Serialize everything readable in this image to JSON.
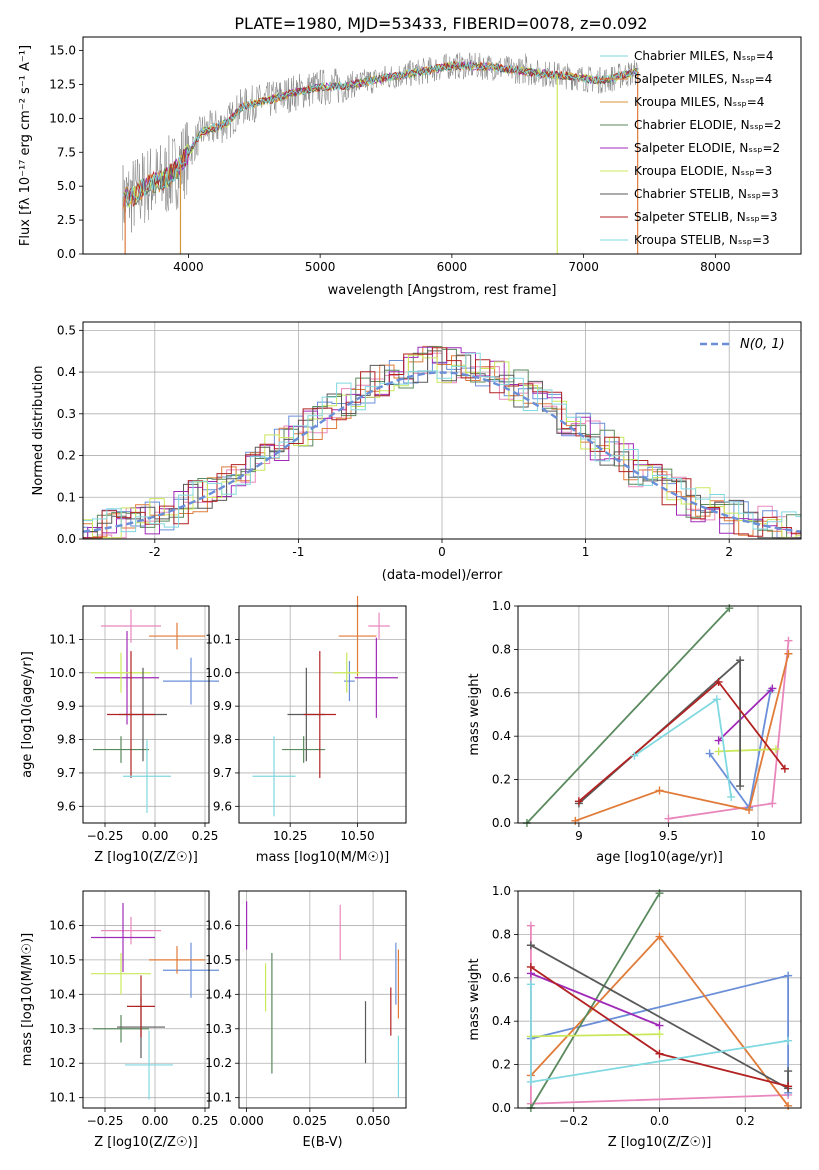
{
  "figure_title": "PLATE=1980, MJD=53433, FIBERID=0078, z=0.092",
  "colors": {
    "mix": [
      "#7fd3d8",
      "#e07b39",
      "#d4943a",
      "#5a8a5e",
      "#a02ab8",
      "#c9e85a",
      "#5a5a5a",
      "#b22222",
      "#80d8e0"
    ],
    "series": [
      "#e987bd",
      "#6a8fd8",
      "#e07b39",
      "#5a8a5e",
      "#a02ab8",
      "#c9e85a",
      "#5a5a5a",
      "#b22222",
      "#80d8e0"
    ],
    "grid": "#b0b0b0",
    "normal": "#6a8fd8",
    "data": "#808080"
  },
  "chart_data": [
    {
      "type": "line",
      "name": "spectrum",
      "title": "PLATE=1980, MJD=53433, FIBERID=0078, z=0.092",
      "xlabel": "wavelength [Angstrom, rest frame]",
      "ylabel": "Flux [fλ 10⁻¹⁷ erg cm⁻² s⁻¹ A⁻¹]",
      "xlim": [
        3200,
        8650
      ],
      "ylim": [
        0,
        16
      ],
      "xticks": [
        4000,
        5000,
        6000,
        7000,
        8000
      ],
      "yticks": [
        0.0,
        2.5,
        5.0,
        7.5,
        10.0,
        12.5,
        15.0
      ],
      "legend_position": "right",
      "legend": [
        "Chabrier MILES, N_SSP=4",
        "Salpeter MILES, N_SSP=4",
        "Kroupa MILES, N_SSP=4",
        "Chabrier ELODIE, N_SSP=2",
        "Salpeter ELODIE, N_SSP=2",
        "Kroupa ELODIE, N_SSP=3",
        "Chabrier STELIB, N_SSP=3",
        "Salpeter STELIB, N_SSP=3",
        "Kroupa STELIB, N_SSP=3"
      ],
      "continuum": {
        "x": [
          3500,
          3600,
          3700,
          3800,
          3900,
          4000,
          4100,
          4200,
          4300,
          4400,
          4500,
          4600,
          4800,
          5000,
          5200,
          5500,
          5800,
          6000,
          6300,
          6600,
          6900,
          7100,
          7200,
          7300,
          7400
        ],
        "y": [
          4.0,
          4.4,
          5.2,
          5.4,
          6.1,
          7.4,
          9.0,
          9.3,
          9.7,
          10.8,
          11.1,
          11.3,
          11.9,
          12.3,
          12.4,
          13.0,
          13.5,
          13.9,
          13.8,
          13.4,
          13.1,
          12.8,
          12.9,
          13.2,
          13.4
        ]
      }
    },
    {
      "type": "line",
      "name": "residual-histogram",
      "xlabel": "(data-model)/error",
      "ylabel": "Normed distribution",
      "xlim": [
        -2.5,
        2.5
      ],
      "ylim": [
        0,
        0.52
      ],
      "xticks": [
        -2,
        -1,
        0,
        1,
        2
      ],
      "yticks": [
        0.0,
        0.1,
        0.2,
        0.3,
        0.4,
        0.5
      ],
      "legend": [
        "N(0, 1)"
      ],
      "legend_position": "top-right",
      "bin_width": 0.1
    },
    {
      "type": "scatter",
      "name": "age-vs-Z",
      "xlabel": "Z [log10(Z/Z☉)]",
      "ylabel": "age [log10(age/yr)]",
      "xlim": [
        -0.36,
        0.27
      ],
      "ylim": [
        9.55,
        10.2
      ],
      "xticks": [
        -0.25,
        0.0,
        0.25
      ],
      "xticklabels": [
        "−0.25",
        "0.00",
        "0.25"
      ],
      "yticks": [
        9.6,
        9.7,
        9.8,
        9.9,
        10.0,
        10.1
      ],
      "points": [
        {
          "x": -0.12,
          "y": 10.14,
          "xerr": 0.15,
          "yerr": 0.05,
          "c": 0
        },
        {
          "x": 0.18,
          "y": 9.975,
          "xerr": 0.14,
          "yerr": 0.07,
          "c": 1
        },
        {
          "x": 0.11,
          "y": 10.11,
          "xerr": 0.14,
          "yerr": 0.04,
          "c": 2
        },
        {
          "x": -0.17,
          "y": 9.77,
          "xerr": 0.14,
          "yerr": 0.04,
          "c": 3
        },
        {
          "x": -0.14,
          "y": 9.985,
          "xerr": 0.16,
          "yerr": 0.14,
          "c": 4
        },
        {
          "x": -0.17,
          "y": 10.0,
          "xerr": 0.15,
          "yerr": 0.06,
          "c": 5
        },
        {
          "x": -0.06,
          "y": 9.875,
          "xerr": 0.12,
          "yerr": 0.14,
          "c": 6
        },
        {
          "x": -0.12,
          "y": 9.875,
          "xerr": 0.12,
          "yerr": 0.19,
          "c": 7
        },
        {
          "x": -0.04,
          "y": 9.69,
          "xerr": 0.12,
          "yerr": 0.11,
          "c": 8
        }
      ]
    },
    {
      "type": "scatter",
      "name": "age-vs-mass",
      "xlabel": "mass [log10(M/M☉)]",
      "xlim": [
        10.06,
        10.68
      ],
      "ylim": [
        9.55,
        10.2
      ],
      "xticks": [
        10.25,
        10.5
      ],
      "xticklabels": [
        "10.25",
        "10.50"
      ],
      "yticks": [
        9.6,
        9.7,
        9.8,
        9.9,
        10.0,
        10.1
      ],
      "points": [
        {
          "x": 10.58,
          "y": 10.14,
          "xerr": 0.04,
          "yerr": 0.04,
          "c": 0
        },
        {
          "x": 10.47,
          "y": 9.975,
          "xerr": 0.02,
          "yerr": 0.06,
          "c": 1
        },
        {
          "x": 10.5,
          "y": 10.11,
          "xerr": 0.07,
          "yerr": 0.12,
          "c": 2
        },
        {
          "x": 10.3,
          "y": 9.77,
          "xerr": 0.08,
          "yerr": 0.04,
          "c": 3
        },
        {
          "x": 10.57,
          "y": 9.985,
          "xerr": 0.08,
          "yerr": 0.12,
          "c": 4
        },
        {
          "x": 10.46,
          "y": 10.0,
          "xerr": 0.05,
          "yerr": 0.06,
          "c": 5
        },
        {
          "x": 10.31,
          "y": 9.875,
          "xerr": 0.07,
          "yerr": 0.14,
          "c": 6
        },
        {
          "x": 10.36,
          "y": 9.875,
          "xerr": 0.06,
          "yerr": 0.19,
          "c": 7
        },
        {
          "x": 10.19,
          "y": 9.69,
          "xerr": 0.08,
          "yerr": 0.12,
          "c": 8
        }
      ]
    },
    {
      "type": "line",
      "name": "mass-weight-vs-age",
      "xlabel": "age [log10(age/yr)]",
      "ylabel": "mass weight",
      "xlim": [
        8.66,
        10.24
      ],
      "ylim": [
        0,
        1
      ],
      "xticks": [
        9.0,
        9.5,
        10.0
      ],
      "yticks": [
        0.0,
        0.2,
        0.4,
        0.6,
        0.8,
        1.0
      ],
      "series": [
        {
          "c": 0,
          "x": [
            9.5,
            10.08,
            10.17
          ],
          "y": [
            0.02,
            0.09,
            0.84
          ]
        },
        {
          "c": 1,
          "x": [
            9.73,
            9.95,
            10.07
          ],
          "y": [
            0.32,
            0.07,
            0.61
          ]
        },
        {
          "c": 2,
          "x": [
            8.98,
            9.45,
            9.95,
            10.17
          ],
          "y": [
            0.01,
            0.15,
            0.06,
            0.78
          ]
        },
        {
          "c": 3,
          "x": [
            8.71,
            9.84
          ],
          "y": [
            0.0,
            0.99
          ]
        },
        {
          "c": 4,
          "x": [
            9.78,
            10.08
          ],
          "y": [
            0.38,
            0.62
          ]
        },
        {
          "c": 5,
          "x": [
            9.78,
            10.1
          ],
          "y": [
            0.33,
            0.34
          ]
        },
        {
          "c": 6,
          "x": [
            9.0,
            9.9,
            9.9
          ],
          "y": [
            0.09,
            0.75,
            0.17
          ]
        },
        {
          "c": 7,
          "x": [
            9.0,
            9.78,
            10.15
          ],
          "y": [
            0.1,
            0.65,
            0.25
          ]
        },
        {
          "c": 8,
          "x": [
            9.31,
            9.77,
            9.85
          ],
          "y": [
            0.31,
            0.57,
            0.12
          ]
        }
      ]
    },
    {
      "type": "scatter",
      "name": "mass-vs-Z",
      "xlabel": "Z [log10(Z/Z☉)]",
      "ylabel": "mass [log10(M/M☉)]",
      "xlim": [
        -0.36,
        0.27
      ],
      "ylim": [
        10.07,
        10.7
      ],
      "xticks": [
        -0.25,
        0.0,
        0.25
      ],
      "xticklabels": [
        "−0.25",
        "0.00",
        "0.25"
      ],
      "yticks": [
        10.1,
        10.2,
        10.3,
        10.4,
        10.5,
        10.6
      ],
      "points": [
        {
          "x": -0.12,
          "y": 10.585,
          "xerr": 0.15,
          "yerr": 0.04,
          "c": 0
        },
        {
          "x": 0.18,
          "y": 10.47,
          "xerr": 0.14,
          "yerr": 0.08,
          "c": 1
        },
        {
          "x": 0.11,
          "y": 10.5,
          "xerr": 0.14,
          "yerr": 0.04,
          "c": 2
        },
        {
          "x": -0.17,
          "y": 10.3,
          "xerr": 0.14,
          "yerr": 0.04,
          "c": 3
        },
        {
          "x": -0.16,
          "y": 10.565,
          "xerr": 0.16,
          "yerr": 0.1,
          "c": 4
        },
        {
          "x": -0.17,
          "y": 10.46,
          "xerr": 0.15,
          "yerr": 0.06,
          "c": 5
        },
        {
          "x": -0.07,
          "y": 10.305,
          "xerr": 0.12,
          "yerr": 0.09,
          "c": 6
        },
        {
          "x": -0.07,
          "y": 10.365,
          "xerr": 0.07,
          "yerr": 0.09,
          "c": 7
        },
        {
          "x": -0.03,
          "y": 10.195,
          "xerr": 0.12,
          "yerr": 0.1,
          "c": 8
        }
      ]
    },
    {
      "type": "scatter",
      "name": "mass-vs-EBV",
      "xlabel": "E(B-V)",
      "xlim": [
        -0.003,
        0.063
      ],
      "ylim": [
        10.07,
        10.7
      ],
      "xticks": [
        0.0,
        0.025,
        0.05
      ],
      "xticklabels": [
        "0.000",
        "0.025",
        "0.050"
      ],
      "yticks": [
        10.1,
        10.2,
        10.3,
        10.4,
        10.5,
        10.6
      ],
      "points": [
        {
          "x": 0.0,
          "y": 10.6,
          "yerr": 0.07,
          "c": 4
        },
        {
          "x": 0.0075,
          "y": 10.42,
          "yerr": 0.07,
          "c": 5
        },
        {
          "x": 0.01,
          "y": 10.345,
          "yerr": 0.175,
          "c": 3
        },
        {
          "x": 0.037,
          "y": 10.58,
          "yerr": 0.08,
          "c": 0
        },
        {
          "x": 0.047,
          "y": 10.29,
          "yerr": 0.09,
          "c": 6
        },
        {
          "x": 0.057,
          "y": 10.35,
          "yerr": 0.07,
          "c": 7
        },
        {
          "x": 0.059,
          "y": 10.46,
          "yerr": 0.09,
          "c": 1
        },
        {
          "x": 0.06,
          "y": 10.43,
          "yerr": 0.1,
          "c": 2
        },
        {
          "x": 0.06,
          "y": 10.19,
          "yerr": 0.09,
          "c": 8
        }
      ]
    },
    {
      "type": "line",
      "name": "mass-weight-vs-Z",
      "xlabel": "Z [log10(Z/Z☉)]",
      "ylabel": "mass weight",
      "xlim": [
        -0.33,
        0.33
      ],
      "ylim": [
        0,
        1
      ],
      "xticks": [
        -0.2,
        0.0,
        0.2
      ],
      "xticklabels": [
        "−0.2",
        "0.0",
        "0.2"
      ],
      "yticks": [
        0.0,
        0.2,
        0.4,
        0.6,
        0.8,
        1.0
      ],
      "series": [
        {
          "c": 0,
          "x": [
            -0.3,
            -0.3,
            0.3
          ],
          "y": [
            0.84,
            0.02,
            0.06
          ]
        },
        {
          "c": 1,
          "x": [
            -0.3,
            0.3,
            0.3
          ],
          "y": [
            0.32,
            0.61,
            0.07
          ]
        },
        {
          "c": 2,
          "x": [
            -0.3,
            0.0,
            0.3
          ],
          "y": [
            0.15,
            0.79,
            0.01
          ]
        },
        {
          "c": 3,
          "x": [
            -0.3,
            0.0
          ],
          "y": [
            0.0,
            0.99
          ]
        },
        {
          "c": 4,
          "x": [
            -0.3,
            0.0
          ],
          "y": [
            0.62,
            0.38
          ]
        },
        {
          "c": 5,
          "x": [
            -0.3,
            0.0
          ],
          "y": [
            0.33,
            0.34
          ]
        },
        {
          "c": 6,
          "x": [
            -0.3,
            0.3,
            0.3
          ],
          "y": [
            0.75,
            0.09,
            0.17
          ]
        },
        {
          "c": 7,
          "x": [
            -0.3,
            0.0,
            0.3
          ],
          "y": [
            0.65,
            0.25,
            0.1
          ]
        },
        {
          "c": 8,
          "x": [
            -0.3,
            -0.3,
            0.3
          ],
          "y": [
            0.57,
            0.12,
            0.31
          ]
        }
      ]
    }
  ]
}
